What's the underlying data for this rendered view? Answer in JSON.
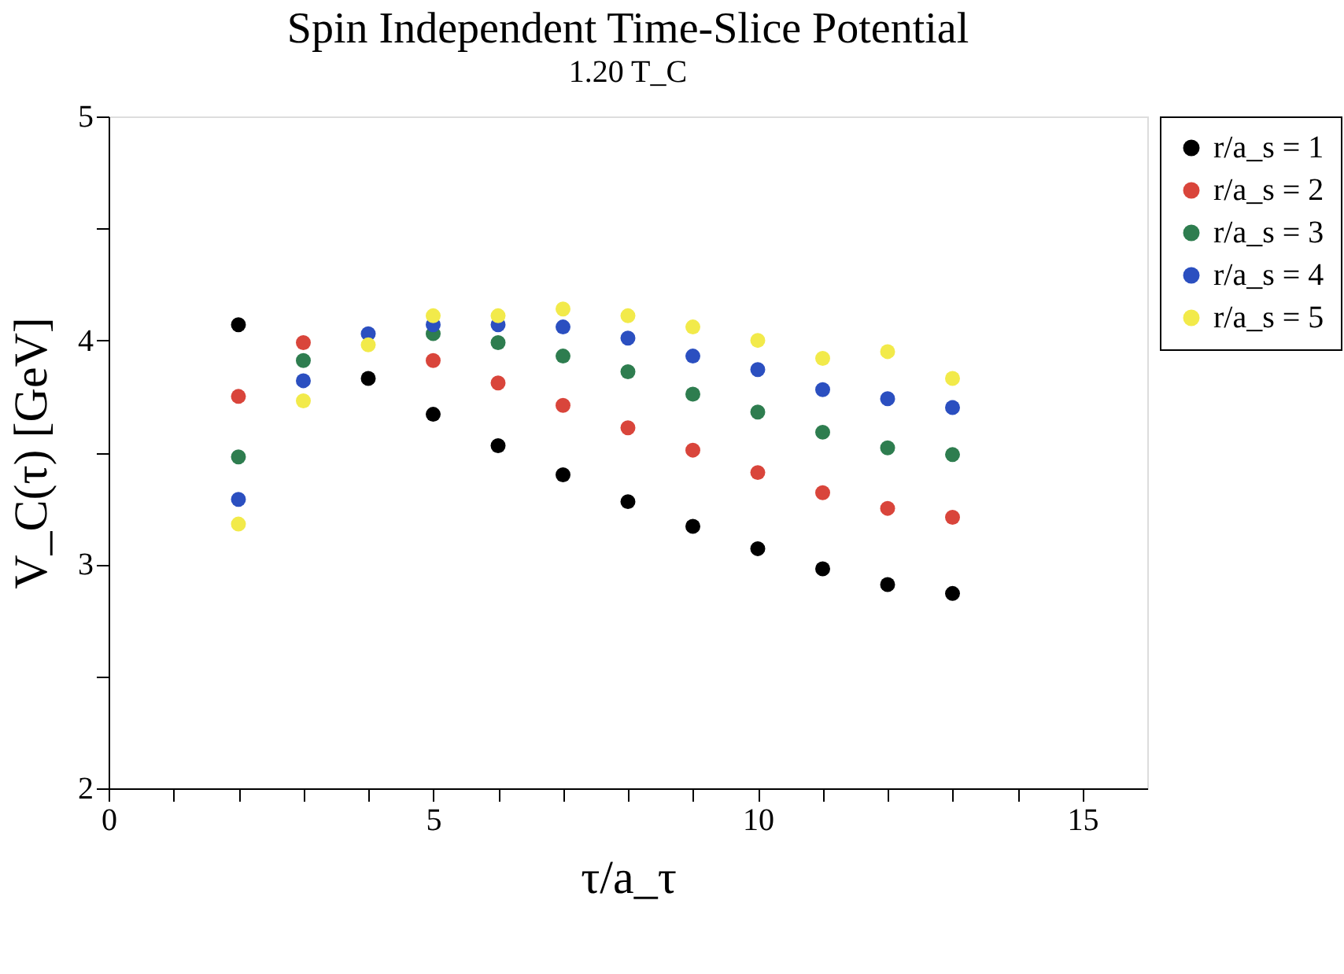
{
  "chart_data": {
    "type": "scatter",
    "title": "Spin Independent Time-Slice Potential",
    "subtitle": "1.20 T_C",
    "xlabel": "τ/a_τ",
    "ylabel": "V_C(τ) [GeV]",
    "x": [
      2,
      3,
      4,
      5,
      6,
      7,
      8,
      9,
      10,
      11,
      12,
      13
    ],
    "series": [
      {
        "name": "r/a_s = 1",
        "color": "#000000",
        "values": [
          4.07,
          null,
          3.83,
          3.67,
          3.53,
          3.4,
          3.28,
          3.17,
          3.07,
          2.98,
          2.91,
          2.87
        ]
      },
      {
        "name": "r/a_s = 2",
        "color": "#d9453b",
        "values": [
          3.75,
          3.99,
          null,
          3.91,
          3.81,
          3.71,
          3.61,
          3.51,
          3.41,
          3.32,
          3.25,
          3.21
        ]
      },
      {
        "name": "r/a_s = 3",
        "color": "#2e7d4f",
        "values": [
          3.48,
          3.91,
          null,
          4.03,
          3.99,
          3.93,
          3.86,
          3.76,
          3.68,
          3.59,
          3.52,
          3.49
        ]
      },
      {
        "name": "r/a_s = 4",
        "color": "#2b4fc0",
        "values": [
          3.29,
          3.82,
          4.03,
          4.07,
          4.07,
          4.06,
          4.01,
          3.93,
          3.87,
          3.78,
          3.74,
          3.7
        ]
      },
      {
        "name": "r/a_s = 5",
        "color": "#f2ea4a",
        "values": [
          3.18,
          3.73,
          3.98,
          4.11,
          4.11,
          4.14,
          4.11,
          4.06,
          4.0,
          3.92,
          3.95,
          3.83
        ]
      }
    ],
    "xlim": [
      0,
      16
    ],
    "ylim": [
      2,
      5
    ],
    "xticks": [
      0,
      {
        "value": 1,
        "label": null
      },
      {
        "value": 2,
        "label": null
      },
      {
        "value": 3,
        "label": null
      },
      {
        "value": 4,
        "label": null
      },
      5,
      {
        "value": 6,
        "label": null
      },
      {
        "value": 7,
        "label": null
      },
      {
        "value": 8,
        "label": null
      },
      {
        "value": 9,
        "label": null
      },
      10,
      {
        "value": 11,
        "label": null
      },
      {
        "value": 12,
        "label": null
      },
      {
        "value": 13,
        "label": null
      },
      {
        "value": 14,
        "label": null
      },
      15
    ],
    "yticks": [
      2,
      {
        "value": 2.5,
        "label": null
      },
      3,
      {
        "value": 3.5,
        "label": null
      },
      4,
      {
        "value": 4.5,
        "label": null
      },
      5
    ],
    "grid": false,
    "legend": "top right",
    "marker": "circle"
  }
}
